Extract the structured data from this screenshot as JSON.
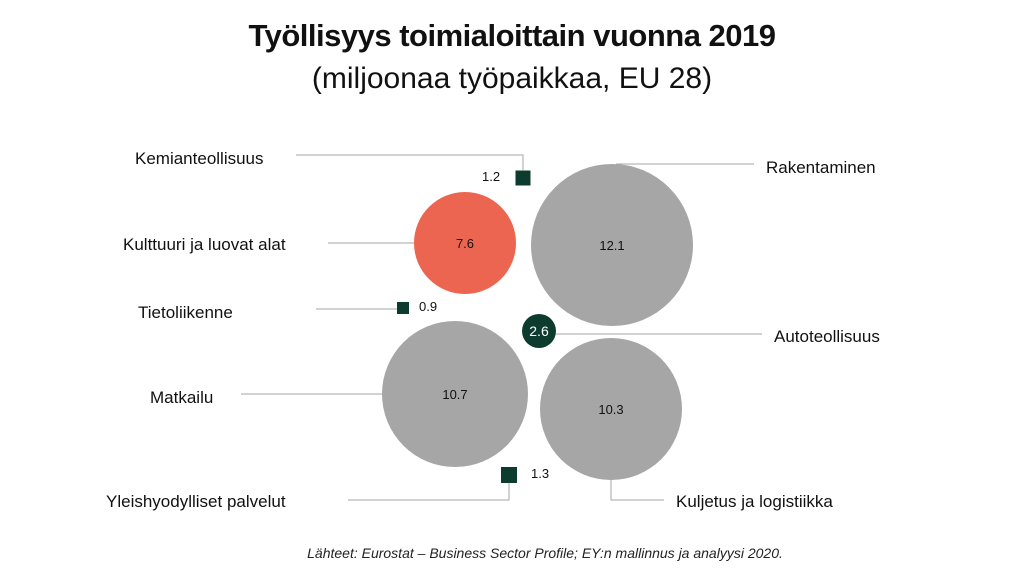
{
  "chart_data": {
    "type": "bubble",
    "title": "Työllisyys toimialoittain vuonna 2019",
    "subtitle": "(miljoonaa työpaikkaa, EU 28)",
    "unit": "miljoonaa työpaikkaa",
    "source": "Lähteet: Eurostat – Business Sector Profile; EY:n mallinnus ja analyysi 2020.",
    "items": [
      {
        "label": "Kemianteollisuus",
        "value": 1.2,
        "value_label": "1.2",
        "color": "#0d3b2e"
      },
      {
        "label": "Kulttuuri ja luovat alat",
        "value": 7.6,
        "value_label": "7.6",
        "color": "#ec6550"
      },
      {
        "label": "Tietoliikenne",
        "value": 0.9,
        "value_label": "0.9",
        "color": "#0d3b2e"
      },
      {
        "label": "Matkailu",
        "value": 10.7,
        "value_label": "10.7",
        "color": "#a6a6a6"
      },
      {
        "label": "Yleishyodylliset palvelut",
        "value": 1.3,
        "value_label": "1.3",
        "color": "#0d3b2e"
      },
      {
        "label": "Rakentaminen",
        "value": 12.1,
        "value_label": "12.1",
        "color": "#a6a6a6"
      },
      {
        "label": "Autoteollisuus",
        "value": 2.6,
        "value_label": "2.6",
        "color": "#0d3b2e"
      },
      {
        "label": "Kuljetus ja logistiikka",
        "value": 10.3,
        "value_label": "10.3",
        "color": "#a6a6a6"
      }
    ]
  }
}
